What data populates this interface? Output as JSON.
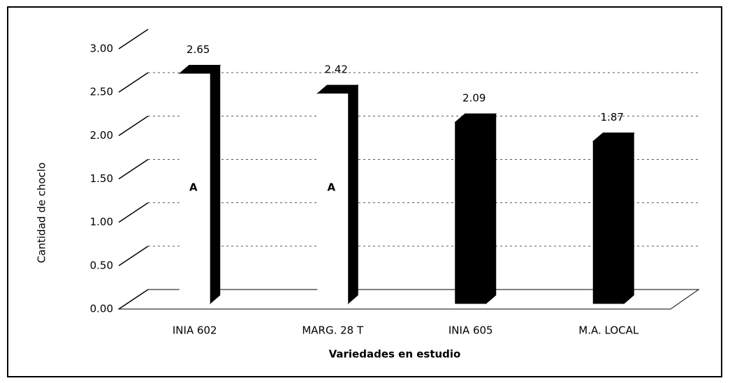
{
  "chart_data": {
    "type": "bar3d",
    "x_label": "Variedades en estudio",
    "y_label": "Cantidad de choclo",
    "categories": [
      "INIA 602",
      "MARG. 28 T",
      "INIA 605",
      "M.A. LOCAL"
    ],
    "values": [
      2.65,
      2.42,
      2.09,
      1.87
    ],
    "colors": [
      "#ffffff",
      "#ffffff",
      "#000000",
      "#000000"
    ],
    "group_letters": [
      "A",
      "A",
      null,
      null
    ],
    "ylim": [
      0,
      3
    ],
    "yticks": [
      {
        "value": 0,
        "label": "0.00"
      },
      {
        "value": 0.5,
        "label": "0.50"
      },
      {
        "value": 1,
        "label": "1.00"
      },
      {
        "value": 1.5,
        "label": "1.50"
      },
      {
        "value": 2,
        "label": "2.00"
      },
      {
        "value": 2.5,
        "label": "2.50"
      },
      {
        "value": 3,
        "label": "3.00"
      }
    ],
    "grid": true
  }
}
